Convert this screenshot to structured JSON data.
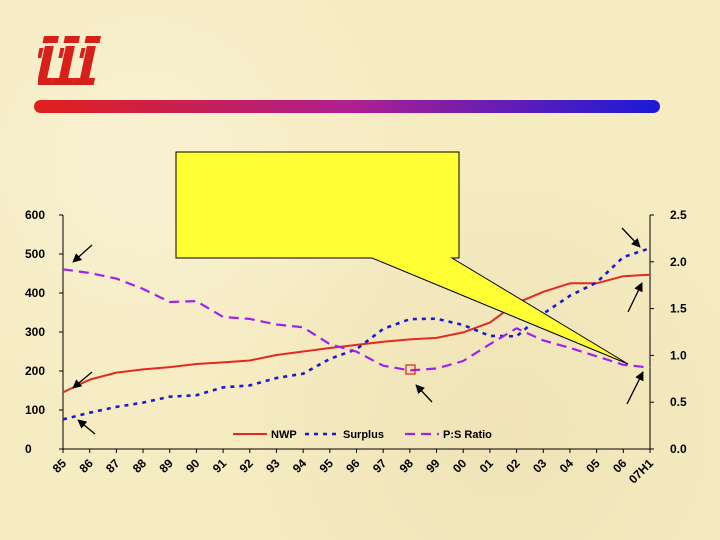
{
  "colors": {
    "nwp": "#e8281e",
    "surplus": "#1a1ad0",
    "ratio": "#a020f0",
    "callout": "#ffff33",
    "logo": "#d8201a"
  },
  "logo": {
    "icon": "iii-logo"
  },
  "callout": {
    "text": ""
  },
  "chart_data": {
    "type": "line",
    "categories": [
      "85",
      "86",
      "87",
      "88",
      "89",
      "90",
      "91",
      "92",
      "93",
      "94",
      "95",
      "96",
      "97",
      "98",
      "99",
      "00",
      "01",
      "02",
      "03",
      "04",
      "05",
      "06",
      "07H1"
    ],
    "ylim_left": [
      0,
      600
    ],
    "yticks_left": [
      "0",
      "100",
      "200",
      "300",
      "400",
      "500",
      "600"
    ],
    "ylim_right": [
      0.0,
      2.5
    ],
    "yticks_right": [
      "0.0",
      "0.5",
      "1.0",
      "1.5",
      "2.0",
      "2.5"
    ],
    "grid": false,
    "legend_position": "bottom-center",
    "series": [
      {
        "name": "NWP",
        "axis": "left",
        "style": "solid",
        "values": [
          145,
          178,
          196,
          204,
          210,
          218,
          222,
          227,
          241,
          250,
          259,
          267,
          275,
          281,
          285,
          299,
          324,
          374,
          403,
          425,
          425,
          443,
          447
        ]
      },
      {
        "name": "Surplus",
        "axis": "left",
        "style": "dashed",
        "values": [
          76,
          93,
          108,
          119,
          134,
          138,
          158,
          163,
          182,
          193,
          231,
          256,
          308,
          333,
          334,
          318,
          290,
          289,
          347,
          393,
          427,
          492,
          515
        ]
      },
      {
        "name": "P:S Ratio",
        "axis": "right",
        "style": "dashed",
        "values": [
          1.92,
          1.88,
          1.82,
          1.71,
          1.57,
          1.58,
          1.41,
          1.39,
          1.33,
          1.3,
          1.12,
          1.04,
          0.89,
          0.84,
          0.86,
          0.94,
          1.12,
          1.29,
          1.16,
          1.08,
          0.99,
          0.9,
          0.87
        ]
      }
    ]
  }
}
